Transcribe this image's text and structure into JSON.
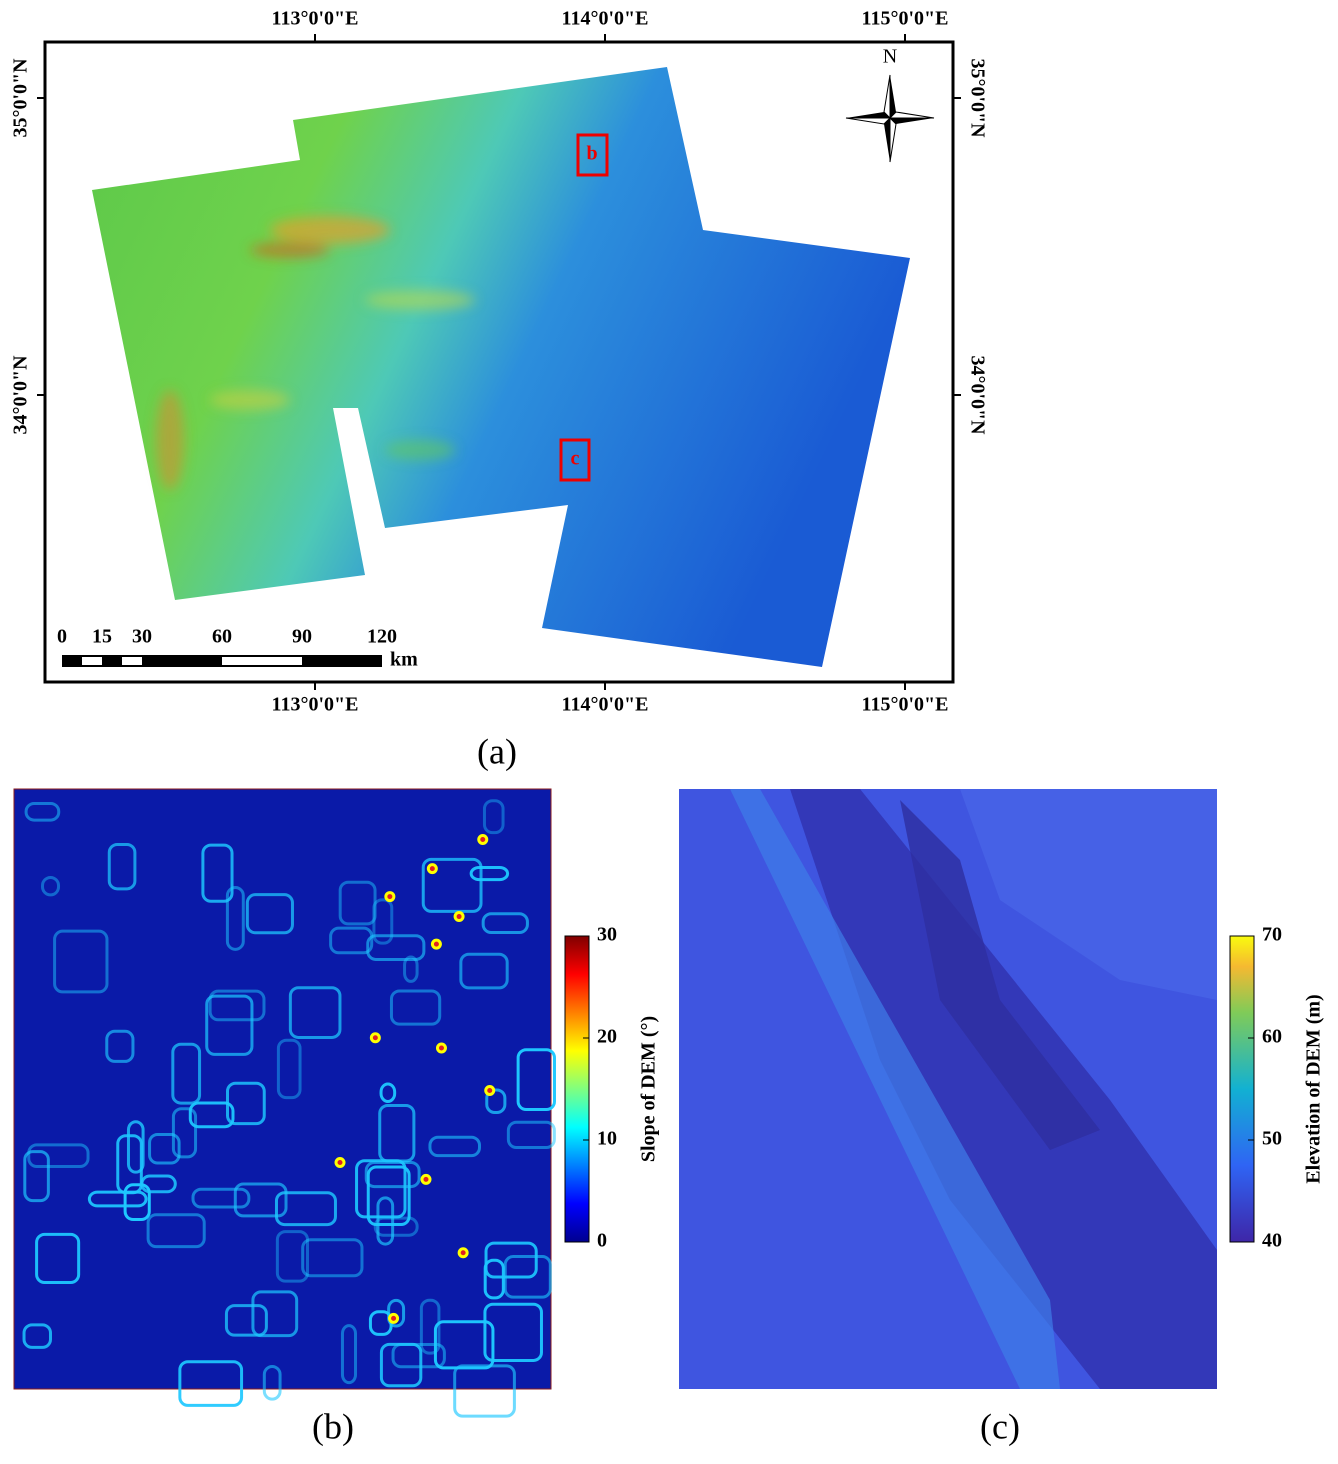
{
  "map": {
    "lon_labels": [
      "113°0'0\"E",
      "114°0'0\"E",
      "115°0'0\"E"
    ],
    "lat_labels": [
      "35°0'0\"N",
      "34°0'0\"N"
    ],
    "north": "N",
    "scale_bar": {
      "ticks": [
        0,
        15,
        30,
        60,
        90,
        120
      ],
      "xlim": [
        0,
        120
      ],
      "unit": "km"
    },
    "boxes": [
      "b",
      "c"
    ],
    "caption": "(a)"
  },
  "panels": [
    {
      "caption": "(b)",
      "colorbar": {
        "label": "Slope of DEM (°)",
        "ylim": [
          0,
          30
        ],
        "yticks": [
          0,
          10,
          20,
          30
        ]
      }
    },
    {
      "caption": "(c)",
      "colorbar": {
        "label": "Elevation of DEM (m)",
        "ylim": [
          40,
          70
        ],
        "yticks": [
          40,
          50,
          60,
          70
        ]
      }
    }
  ]
}
